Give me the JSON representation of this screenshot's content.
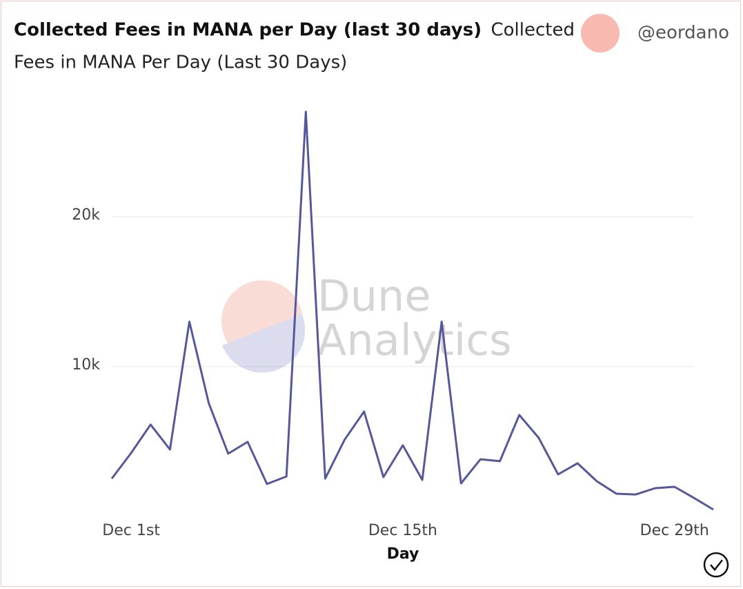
{
  "chart_data": {
    "type": "line",
    "title": "Collected Fees in MANA per Day (last 30 days)",
    "subtitle": "Fees in MANA Per Day (Last 30 Days)",
    "author": "@eordano",
    "watermark": [
      "Dune",
      "Analytics"
    ],
    "x_label": "Day",
    "categories": [
      null,
      "Dec 1st",
      null,
      null,
      null,
      null,
      null,
      null,
      null,
      null,
      null,
      null,
      null,
      null,
      null,
      "Dec 15th",
      null,
      null,
      null,
      null,
      null,
      null,
      null,
      null,
      null,
      null,
      null,
      null,
      null,
      "Dec 29th",
      null,
      null
    ],
    "series": [
      {
        "name": "Collected",
        "color": "#55579a",
        "values": [
          2530,
          4240,
          6130,
          4470,
          13000,
          7560,
          4190,
          4980,
          2170,
          2670,
          27000,
          2530,
          5120,
          7000,
          2630,
          4750,
          2440,
          13000,
          2210,
          3820,
          3690,
          6770,
          5250,
          2810,
          3550,
          2350,
          1520,
          1470,
          1890,
          1980,
          1240,
          460
        ]
      }
    ],
    "ylim": [
      0,
      27500
    ],
    "yticks": [
      {
        "value": 10000,
        "label": "10k"
      },
      {
        "value": 20000,
        "label": "20k"
      }
    ],
    "grid": true
  }
}
